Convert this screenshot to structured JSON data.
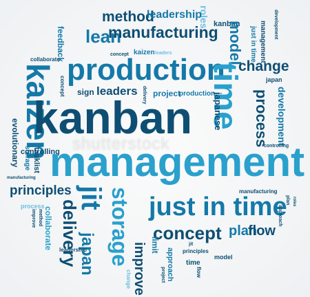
{
  "colors": {
    "dark": "#0e4e73",
    "mid": "#1479a8",
    "light": "#2aa0cc",
    "pale": "#6dbfe0",
    "deep": "#0b3850"
  },
  "watermark": "shutterstock",
  "words": [
    {
      "id": "w-roles-top",
      "text": "roles"
    },
    {
      "id": "w-development-top",
      "text": "development"
    },
    {
      "id": "w-method",
      "text": "method"
    },
    {
      "id": "w-leadership",
      "text": "leadership"
    },
    {
      "id": "w-kanban-top",
      "text": "kanban"
    },
    {
      "id": "w-feedback",
      "text": "feedback"
    },
    {
      "id": "w-lean",
      "text": "lean"
    },
    {
      "id": "w-manufacturing",
      "text": "manufacturing"
    },
    {
      "id": "w-management-v",
      "text": "management"
    },
    {
      "id": "w-just-in-time-v",
      "text": "just in time"
    },
    {
      "id": "w-collaborate",
      "text": "collaborate"
    },
    {
      "id": "w-concept-sm",
      "text": "concept"
    },
    {
      "id": "w-kaizen-sm",
      "text": "kaizen"
    },
    {
      "id": "w-leaders-sm",
      "text": "leaders"
    },
    {
      "id": "w-production",
      "text": "production"
    },
    {
      "id": "w-model",
      "text": "model"
    },
    {
      "id": "w-change",
      "text": "change"
    },
    {
      "id": "w-kaizen",
      "text": "kaizen"
    },
    {
      "id": "w-concept-v",
      "text": "concept"
    },
    {
      "id": "w-sign",
      "text": "sign"
    },
    {
      "id": "w-leaders",
      "text": "leaders"
    },
    {
      "id": "w-delivery-v",
      "text": "delivery"
    },
    {
      "id": "w-project",
      "text": "project"
    },
    {
      "id": "w-production-sm",
      "text": "production"
    },
    {
      "id": "w-japan-sm",
      "text": "japan"
    },
    {
      "id": "w-time",
      "text": "time"
    },
    {
      "id": "w-japanese",
      "text": "japanese"
    },
    {
      "id": "w-process",
      "text": "process"
    },
    {
      "id": "w-development",
      "text": "development"
    },
    {
      "id": "w-kanban",
      "text": "kanban"
    },
    {
      "id": "w-evolutionary",
      "text": "evolutionary"
    },
    {
      "id": "w-storage-v",
      "text": "storage"
    },
    {
      "id": "w-tasklist-v",
      "text": "tasklist"
    },
    {
      "id": "w-controlling",
      "text": "controlling"
    },
    {
      "id": "w-controlling-sm",
      "text": "controlling"
    },
    {
      "id": "w-management",
      "text": "management"
    },
    {
      "id": "w-manufacturing-sm",
      "text": "manufacturing"
    },
    {
      "id": "w-principles",
      "text": "principles"
    },
    {
      "id": "w-process-sm",
      "text": "process"
    },
    {
      "id": "w-jit",
      "text": "jit"
    },
    {
      "id": "w-storage",
      "text": "storage"
    },
    {
      "id": "w-just-in-time",
      "text": "just in time"
    },
    {
      "id": "w-delivery",
      "text": "delivery"
    },
    {
      "id": "w-manufacturing-sm2",
      "text": "manufacturing"
    },
    {
      "id": "w-plan-sm",
      "text": "plan"
    },
    {
      "id": "w-roles-sm",
      "text": "roles"
    },
    {
      "id": "w-improve-v",
      "text": "improve"
    },
    {
      "id": "w-method-v",
      "text": "method"
    },
    {
      "id": "w-collaborate-v",
      "text": "collaborate"
    },
    {
      "id": "w-japan",
      "text": "japan"
    },
    {
      "id": "w-improve",
      "text": "improve"
    },
    {
      "id": "w-concept",
      "text": "concept"
    },
    {
      "id": "w-plan",
      "text": "plan"
    },
    {
      "id": "w-flow",
      "text": "flow"
    },
    {
      "id": "w-leadership-sm",
      "text": "leadership"
    },
    {
      "id": "w-change-sm",
      "text": "change"
    },
    {
      "id": "w-approach",
      "text": "approach"
    },
    {
      "id": "w-limit",
      "text": "limit"
    },
    {
      "id": "w-time-sm",
      "text": "time"
    },
    {
      "id": "w-model-sm",
      "text": "model"
    },
    {
      "id": "w-flow-sm",
      "text": "flow"
    },
    {
      "id": "w-principles-sm",
      "text": "principles"
    },
    {
      "id": "w-jit-sm",
      "text": "jit"
    },
    {
      "id": "w-project-sm",
      "text": "project"
    },
    {
      "id": "w-approach-sm",
      "text": "approach"
    }
  ]
}
